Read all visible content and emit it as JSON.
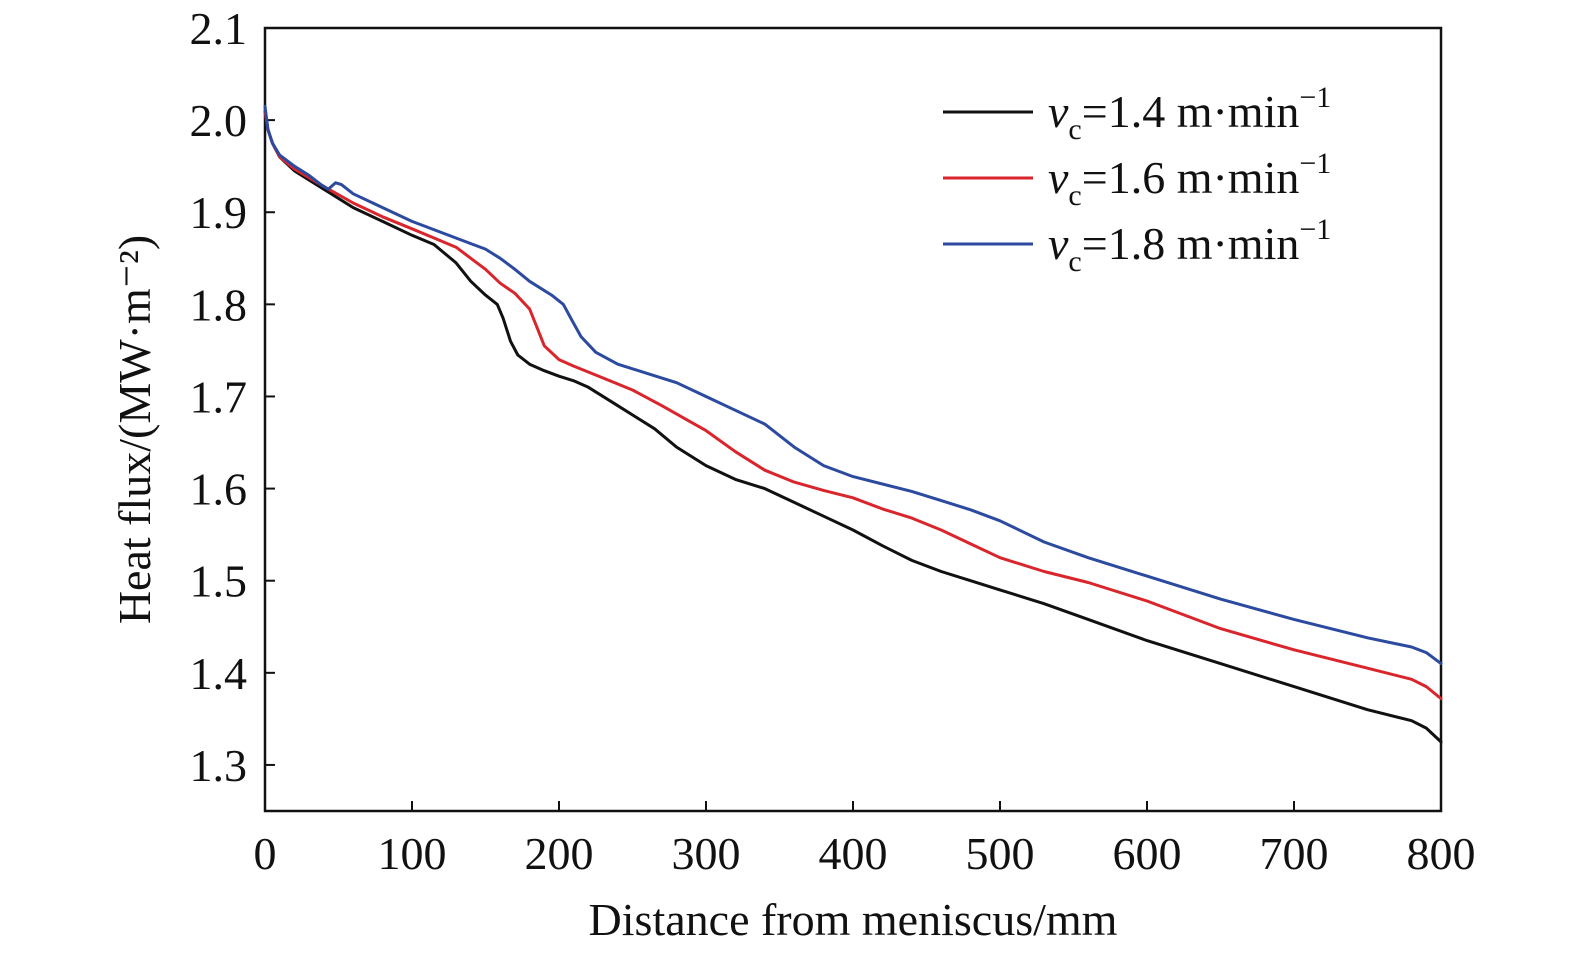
{
  "chart_data": {
    "type": "line",
    "title": "",
    "xlabel": "Distance from meniscus/mm",
    "ylabel": "Heat flux/(MW·m⁻²)",
    "xlim": [
      0,
      800
    ],
    "ylim": [
      1.25,
      2.1
    ],
    "x_ticks": [
      "0",
      "100",
      "200",
      "300",
      "400",
      "500",
      "600",
      "700",
      "800"
    ],
    "y_ticks": [
      "1.3",
      "1.4",
      "1.5",
      "1.6",
      "1.7",
      "1.8",
      "1.9",
      "2.0",
      "2.1"
    ],
    "grid": false,
    "legend_position": "top-right",
    "series": [
      {
        "name": "vc=1.4 m·min⁻¹",
        "legend": {
          "var": "v",
          "sub": "c",
          "rest": "=1.4 m·min",
          "sup": "−1"
        },
        "color": "#111111",
        "x": [
          0,
          2,
          5,
          10,
          20,
          40,
          60,
          80,
          100,
          115,
          130,
          140,
          150,
          158,
          162,
          167,
          172,
          180,
          190,
          200,
          210,
          220,
          240,
          265,
          280,
          300,
          320,
          340,
          360,
          380,
          400,
          420,
          440,
          460,
          480,
          500,
          530,
          560,
          600,
          650,
          700,
          750,
          780,
          790,
          800
        ],
        "y": [
          2.01,
          1.99,
          1.975,
          1.96,
          1.945,
          1.925,
          1.905,
          1.89,
          1.875,
          1.865,
          1.845,
          1.825,
          1.81,
          1.8,
          1.785,
          1.76,
          1.745,
          1.735,
          1.728,
          1.722,
          1.717,
          1.71,
          1.69,
          1.665,
          1.645,
          1.625,
          1.61,
          1.6,
          1.585,
          1.57,
          1.555,
          1.538,
          1.522,
          1.51,
          1.5,
          1.49,
          1.475,
          1.458,
          1.435,
          1.41,
          1.385,
          1.36,
          1.348,
          1.34,
          1.325
        ]
      },
      {
        "name": "vc=1.6 m·min⁻¹",
        "legend": {
          "var": "v",
          "sub": "c",
          "rest": "=1.6 m·min",
          "sup": "−1"
        },
        "color": "#d9262c",
        "x": [
          0,
          2,
          5,
          10,
          20,
          40,
          60,
          80,
          100,
          115,
          130,
          140,
          150,
          160,
          170,
          180,
          185,
          190,
          200,
          210,
          230,
          250,
          270,
          290,
          300,
          320,
          340,
          360,
          380,
          400,
          420,
          440,
          460,
          480,
          500,
          530,
          560,
          600,
          650,
          700,
          750,
          780,
          790,
          800
        ],
        "y": [
          2.01,
          1.99,
          1.975,
          1.96,
          1.947,
          1.928,
          1.91,
          1.895,
          1.882,
          1.872,
          1.862,
          1.85,
          1.838,
          1.823,
          1.812,
          1.795,
          1.775,
          1.755,
          1.74,
          1.733,
          1.72,
          1.707,
          1.69,
          1.672,
          1.663,
          1.64,
          1.62,
          1.607,
          1.598,
          1.59,
          1.578,
          1.568,
          1.555,
          1.54,
          1.525,
          1.51,
          1.498,
          1.478,
          1.448,
          1.425,
          1.405,
          1.393,
          1.385,
          1.372
        ]
      },
      {
        "name": "vc=1.8 m·min⁻¹",
        "legend": {
          "var": "v",
          "sub": "c",
          "rest": "=1.8 m·min",
          "sup": "−1"
        },
        "color": "#2b4aa0",
        "x": [
          0,
          2,
          5,
          10,
          20,
          30,
          38,
          43,
          48,
          52,
          60,
          80,
          100,
          120,
          140,
          150,
          160,
          170,
          180,
          195,
          203,
          208,
          215,
          225,
          240,
          260,
          280,
          300,
          320,
          340,
          360,
          380,
          400,
          420,
          440,
          460,
          480,
          500,
          530,
          560,
          600,
          650,
          700,
          750,
          780,
          790,
          800
        ],
        "y": [
          2.015,
          1.99,
          1.975,
          1.962,
          1.95,
          1.94,
          1.93,
          1.925,
          1.932,
          1.93,
          1.92,
          1.905,
          1.89,
          1.878,
          1.866,
          1.86,
          1.85,
          1.838,
          1.825,
          1.81,
          1.8,
          1.785,
          1.765,
          1.748,
          1.735,
          1.725,
          1.715,
          1.7,
          1.685,
          1.67,
          1.645,
          1.625,
          1.613,
          1.605,
          1.597,
          1.587,
          1.577,
          1.565,
          1.542,
          1.525,
          1.505,
          1.48,
          1.458,
          1.438,
          1.428,
          1.422,
          1.41
        ]
      }
    ]
  }
}
